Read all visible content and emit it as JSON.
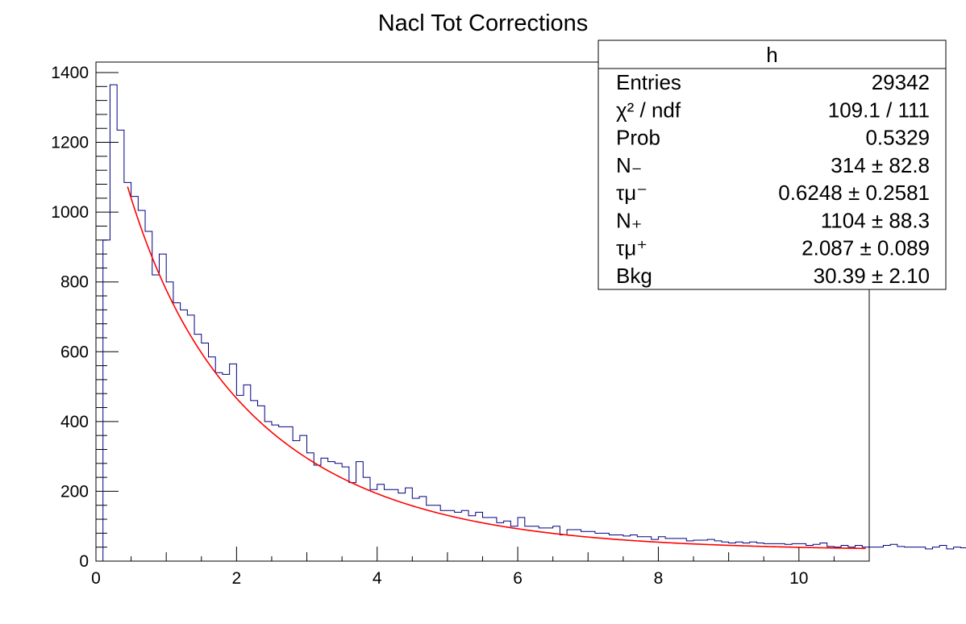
{
  "chart_data": {
    "type": "histogram",
    "title": "Nacl Tot Corrections",
    "xlim": [
      0,
      11
    ],
    "ylim": [
      0,
      1430
    ],
    "x_ticks": [
      "0",
      "2",
      "4",
      "6",
      "8",
      "10"
    ],
    "y_ticks": [
      "0",
      "200",
      "400",
      "600",
      "800",
      "1000",
      "1200",
      "1400"
    ],
    "bin_width": 0.1,
    "x_start": 0.1,
    "histogram_values": [
      920,
      1365,
      1235,
      1085,
      1045,
      1005,
      945,
      820,
      880,
      800,
      740,
      720,
      705,
      650,
      625,
      585,
      540,
      535,
      565,
      475,
      505,
      460,
      445,
      400,
      390,
      385,
      385,
      345,
      360,
      310,
      275,
      295,
      285,
      280,
      270,
      225,
      285,
      240,
      205,
      220,
      205,
      205,
      195,
      210,
      180,
      185,
      160,
      160,
      145,
      145,
      140,
      145,
      130,
      140,
      125,
      125,
      110,
      115,
      100,
      125,
      100,
      100,
      95,
      95,
      100,
      75,
      90,
      90,
      85,
      85,
      80,
      80,
      75,
      75,
      72,
      75,
      70,
      70,
      62,
      70,
      65,
      65,
      65,
      58,
      60,
      60,
      62,
      58,
      55,
      52,
      55,
      52,
      55,
      52,
      50,
      50,
      50,
      48,
      50,
      50,
      45,
      48,
      52,
      42,
      40,
      45,
      40,
      45,
      40,
      40,
      40,
      45,
      48,
      42,
      40,
      40,
      40,
      35,
      40,
      45,
      35,
      40,
      38,
      40,
      36,
      42,
      40,
      38,
      42
    ],
    "histogram_color": "#000080",
    "fit": {
      "name": "N- exp(-t/tau_mu-) + N+ exp(-t/tau_mu+) + Bkg",
      "x_range": [
        0.45,
        10.95
      ],
      "N_minus": 314,
      "tau_minus": 0.6248,
      "N_plus": 1104,
      "tau_plus": 2.087,
      "bkg": 30.39,
      "color": "#ff0000"
    }
  },
  "stats_box": {
    "header": "h",
    "rows": [
      {
        "label": "Entries",
        "value": "29342"
      },
      {
        "label": "χ² / ndf",
        "value": "109.1 / 111"
      },
      {
        "label": "Prob",
        "value": "0.5329"
      },
      {
        "label": "N₋",
        "value": "314 ± 82.8"
      },
      {
        "label": "τμ⁻",
        "value": "0.6248 ± 0.2581"
      },
      {
        "label": "N₊",
        "value": "1104 ± 88.3"
      },
      {
        "label": "τμ⁺",
        "value": "2.087 ± 0.089"
      },
      {
        "label": "Bkg",
        "value": "30.39 ± 2.10"
      }
    ]
  }
}
